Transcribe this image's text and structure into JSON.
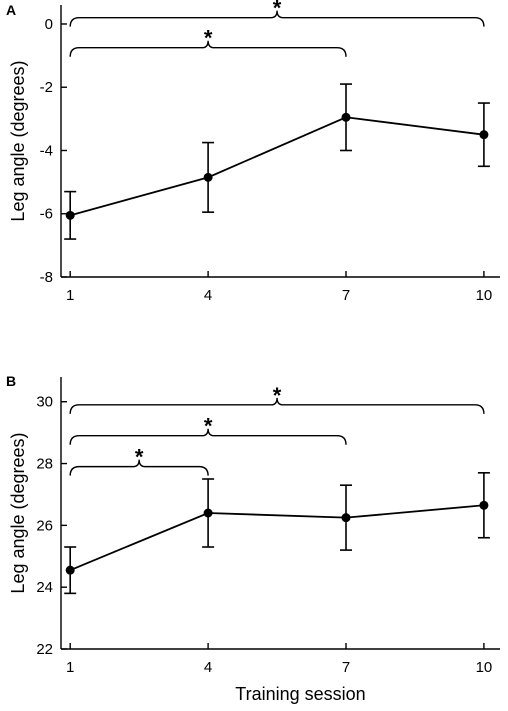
{
  "chart_data": [
    {
      "panel_label": "A",
      "type": "line",
      "xlabel": "",
      "ylabel": "Leg angle (degrees)",
      "x": [
        1,
        4,
        7,
        10
      ],
      "x_ticks": [
        "1",
        "4",
        "7",
        "10"
      ],
      "y_ticks": [
        "0",
        "-2",
        "-4",
        "-6",
        "-8"
      ],
      "xlim": [
        0.8,
        10.35
      ],
      "ylim": [
        -8,
        0.6
      ],
      "series": [
        {
          "values": [
            -6.05,
            -4.85,
            -2.95,
            -3.5
          ],
          "error": [
            0.75,
            1.1,
            1.05,
            1.0
          ]
        }
      ],
      "significance": [
        {
          "from": 1,
          "to": 10,
          "label": "*",
          "y": 0.2
        },
        {
          "from": 1,
          "to": 7,
          "label": "*",
          "y": -0.75
        }
      ],
      "grid": false,
      "legend": "none"
    },
    {
      "panel_label": "B",
      "type": "line",
      "xlabel": "Training session",
      "ylabel": "Leg angle (degrees)",
      "x": [
        1,
        4,
        7,
        10
      ],
      "x_ticks": [
        "1",
        "4",
        "7",
        "10"
      ],
      "y_ticks": [
        "30",
        "28",
        "26",
        "24",
        "22"
      ],
      "xlim": [
        0.8,
        10.35
      ],
      "ylim": [
        22,
        30.8
      ],
      "series": [
        {
          "values": [
            24.55,
            26.4,
            26.25,
            26.65
          ],
          "error": [
            0.75,
            1.1,
            1.05,
            1.05
          ]
        }
      ],
      "significance": [
        {
          "from": 1,
          "to": 10,
          "label": "*",
          "y": 29.9
        },
        {
          "from": 1,
          "to": 7,
          "label": "*",
          "y": 28.9
        },
        {
          "from": 1,
          "to": 4,
          "label": "*",
          "y": 27.9
        }
      ],
      "grid": false,
      "legend": "none"
    }
  ]
}
